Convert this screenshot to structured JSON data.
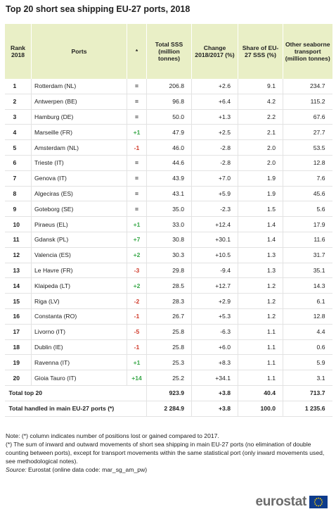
{
  "header": {
    "title": "Top 20 short sea shipping EU-27 ports, 2018"
  },
  "table": {
    "columns": [
      "Rank 2018",
      "Ports",
      "*",
      "Total SSS (million tonnes)",
      "Change 2018/2017 (%)",
      "Share of EU-27 SSS (%)",
      "Other seaborne transport (million tonnes)"
    ],
    "rows": [
      [
        "1",
        "Rotterdam (NL)",
        "=",
        "206.8",
        "+2.6",
        "9.1",
        "234.7"
      ],
      [
        "2",
        "Antwerpen (BE)",
        "=",
        "96.8",
        "+6.4",
        "4.2",
        "115.2"
      ],
      [
        "3",
        "Hamburg (DE)",
        "=",
        "50.0",
        "+1.3",
        "2.2",
        "67.6"
      ],
      [
        "4",
        "Marseille (FR)",
        "+1",
        "47.9",
        "+2.5",
        "2.1",
        "27.7"
      ],
      [
        "5",
        "Amsterdam (NL)",
        "-1",
        "46.0",
        "-2.8",
        "2.0",
        "53.5"
      ],
      [
        "6",
        "Trieste (IT)",
        "=",
        "44.6",
        "-2.8",
        "2.0",
        "12.8"
      ],
      [
        "7",
        "Genova (IT)",
        "=",
        "43.9",
        "+7.0",
        "1.9",
        "7.6"
      ],
      [
        "8",
        "Algeciras (ES)",
        "=",
        "43.1",
        "+5.9",
        "1.9",
        "45.6"
      ],
      [
        "9",
        "Goteborg (SE)",
        "=",
        "35.0",
        "-2.3",
        "1.5",
        "5.6"
      ],
      [
        "10",
        "Piraeus (EL)",
        "+1",
        "33.0",
        "+12.4",
        "1.4",
        "17.9"
      ],
      [
        "11",
        "Gdansk (PL)",
        "+7",
        "30.8",
        "+30.1",
        "1.4",
        "11.6"
      ],
      [
        "12",
        "Valencia (ES)",
        "+2",
        "30.3",
        "+10.5",
        "1.3",
        "31.7"
      ],
      [
        "13",
        "Le Havre (FR)",
        "-3",
        "29.8",
        "-9.4",
        "1.3",
        "35.1"
      ],
      [
        "14",
        "Klaipeda (LT)",
        "+2",
        "28.5",
        "+12.7",
        "1.2",
        "14.3"
      ],
      [
        "15",
        "Riga (LV)",
        "-2",
        "28.3",
        "+2.9",
        "1.2",
        "6.1"
      ],
      [
        "16",
        "Constanta (RO)",
        "-1",
        "26.7",
        "+5.3",
        "1.2",
        "12.8"
      ],
      [
        "17",
        "Livorno (IT)",
        "-5",
        "25.8",
        "-6.3",
        "1.1",
        "4.4"
      ],
      [
        "18",
        "Dublin (IE)",
        "-1",
        "25.8",
        "+6.0",
        "1.1",
        "0.6"
      ],
      [
        "19",
        "Ravenna (IT)",
        "+1",
        "25.3",
        "+8.3",
        "1.1",
        "5.9"
      ],
      [
        "20",
        "Gioia Tauro (IT)",
        "+14",
        "25.2",
        "+34.1",
        "1.1",
        "3.1"
      ]
    ],
    "totals": [
      [
        "Total top 20",
        "923.9",
        "+3.8",
        "40.4",
        "713.7"
      ],
      [
        "Total handled in main EU-27 ports (*)",
        "2 284.9",
        "+3.8",
        "100.0",
        "1 235.6"
      ]
    ]
  },
  "notes": [
    "Note: (*) column indicates number of positions lost or gained compared to 2017.",
    "(*) The sum of inward and outward movements of short sea shipping in main EU-27 ports (no elimination of double counting between ports), except for transport movements within the same statistical port (only inward movements used, see methodological notes)."
  ],
  "source": {
    "label": "Source:",
    "text": "Eurostat (online data code: mar_sg_am_pw)"
  },
  "logo": "eurostat"
}
